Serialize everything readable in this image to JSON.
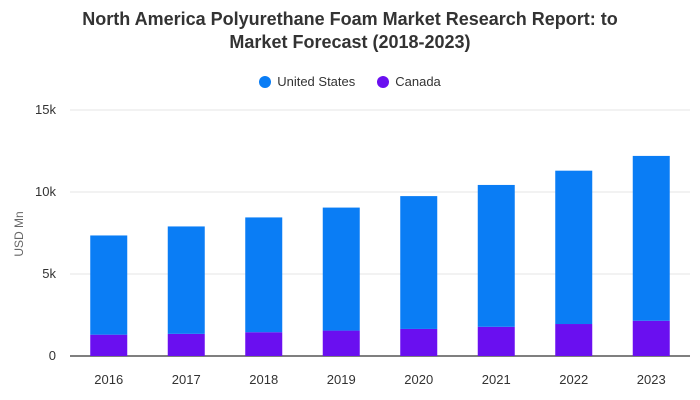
{
  "chart_data": {
    "type": "bar",
    "stacked": true,
    "title_line1": "North America Polyurethane Foam Market Research Report: to",
    "title_line2": "Market Forecast (2018-2023)",
    "ylabel": "USD Mn",
    "xlabel": "",
    "ylim": [
      0,
      15000
    ],
    "yticks": [
      0,
      5000,
      10000,
      15000
    ],
    "ytick_labels": [
      "0",
      "5k",
      "10k",
      "15k"
    ],
    "grid": true,
    "legend_position": "top-center",
    "categories": [
      "2016",
      "2017",
      "2018",
      "2019",
      "2020",
      "2021",
      "2022",
      "2023"
    ],
    "series": [
      {
        "name": "Canada",
        "color": "#6a0ff0",
        "values": [
          1300,
          1350,
          1450,
          1550,
          1650,
          1780,
          1950,
          2150
        ]
      },
      {
        "name": "United States",
        "color": "#0a7df5",
        "values": [
          6050,
          6550,
          7000,
          7500,
          8100,
          8650,
          9350,
          10050
        ]
      }
    ]
  },
  "legend": {
    "items": [
      {
        "label": "United States",
        "color": "#0a7df5"
      },
      {
        "label": "Canada",
        "color": "#6a0ff0"
      }
    ]
  }
}
